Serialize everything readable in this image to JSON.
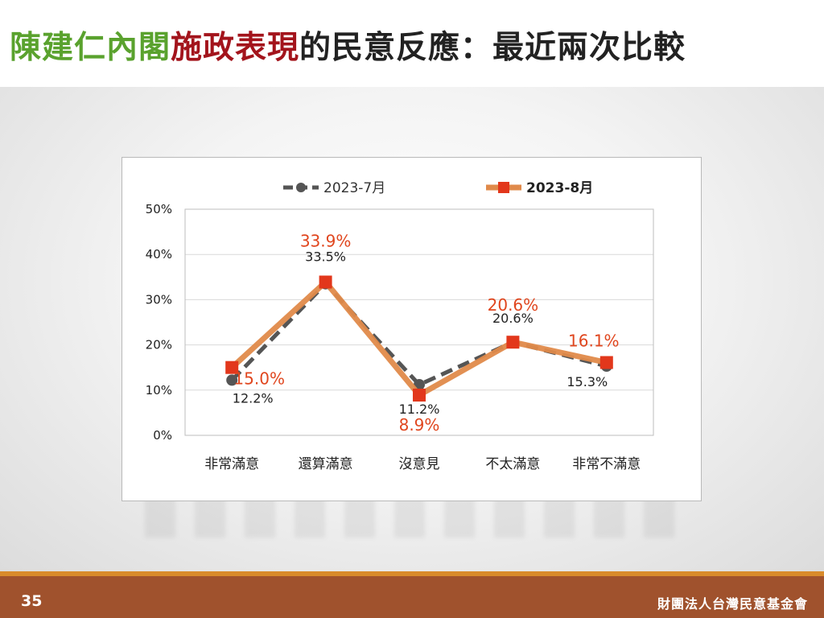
{
  "slide": {
    "title_part1": "陳建仁內閣",
    "title_part2": "施政表現",
    "title_part3": "的民意反應：最近兩次比較",
    "page_number": "35",
    "organization": "財團法人台灣民意基金會"
  },
  "colors": {
    "title_green": "#5aa22e",
    "title_red": "#a3141c",
    "series_july": "#555555",
    "series_august": "#e08a4a",
    "august_marker": "#e2371b",
    "august_label": "#e0461e",
    "footer_bar": "#a0522d",
    "footer_stripe": "#d98b2b"
  },
  "chart_data": {
    "type": "line",
    "categories": [
      "非常滿意",
      "還算滿意",
      "沒意見",
      "不太滿意",
      "非常不滿意"
    ],
    "series": [
      {
        "name": "2023-7月",
        "values": [
          12.2,
          33.5,
          11.2,
          20.6,
          15.3
        ],
        "labels": [
          "12.2%",
          "33.5%",
          "11.2%",
          "20.6%",
          "15.3%"
        ]
      },
      {
        "name": "2023-8月",
        "values": [
          15.0,
          33.9,
          8.9,
          20.6,
          16.1
        ],
        "labels": [
          "15.0%",
          "33.9%",
          "8.9%",
          "20.6%",
          "16.1%"
        ]
      }
    ],
    "ylim": [
      0,
      50
    ],
    "yticks": [
      "0%",
      "10%",
      "20%",
      "30%",
      "40%",
      "50%"
    ],
    "grid": true,
    "legend": "top"
  }
}
